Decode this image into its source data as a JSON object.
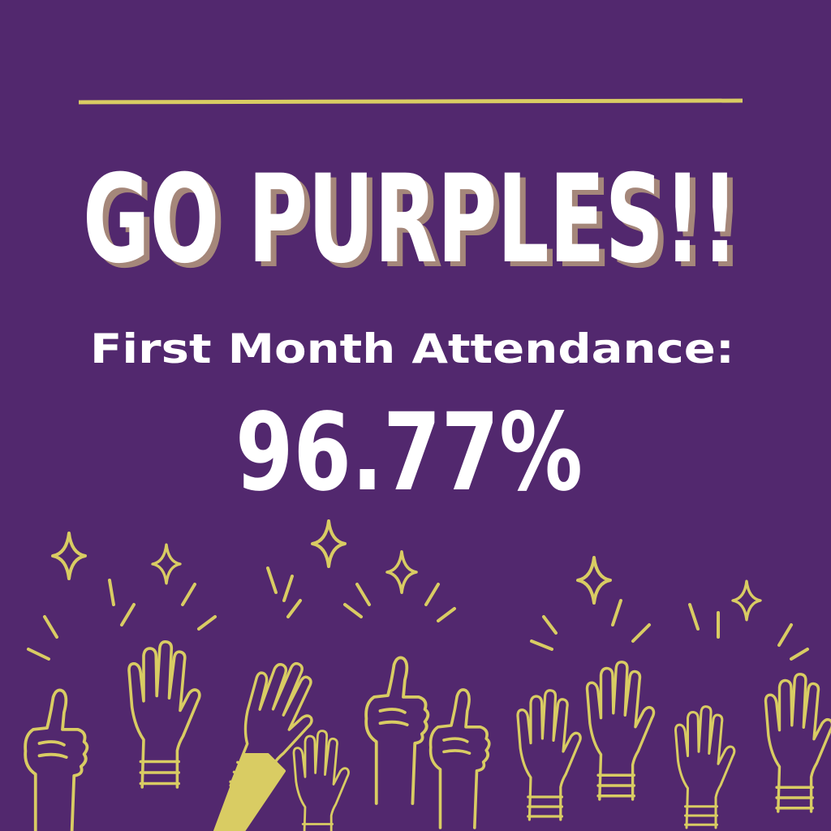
{
  "title": "GO PURPLES!!",
  "subtitle": "First Month Attendance:",
  "value": "96.77%"
}
